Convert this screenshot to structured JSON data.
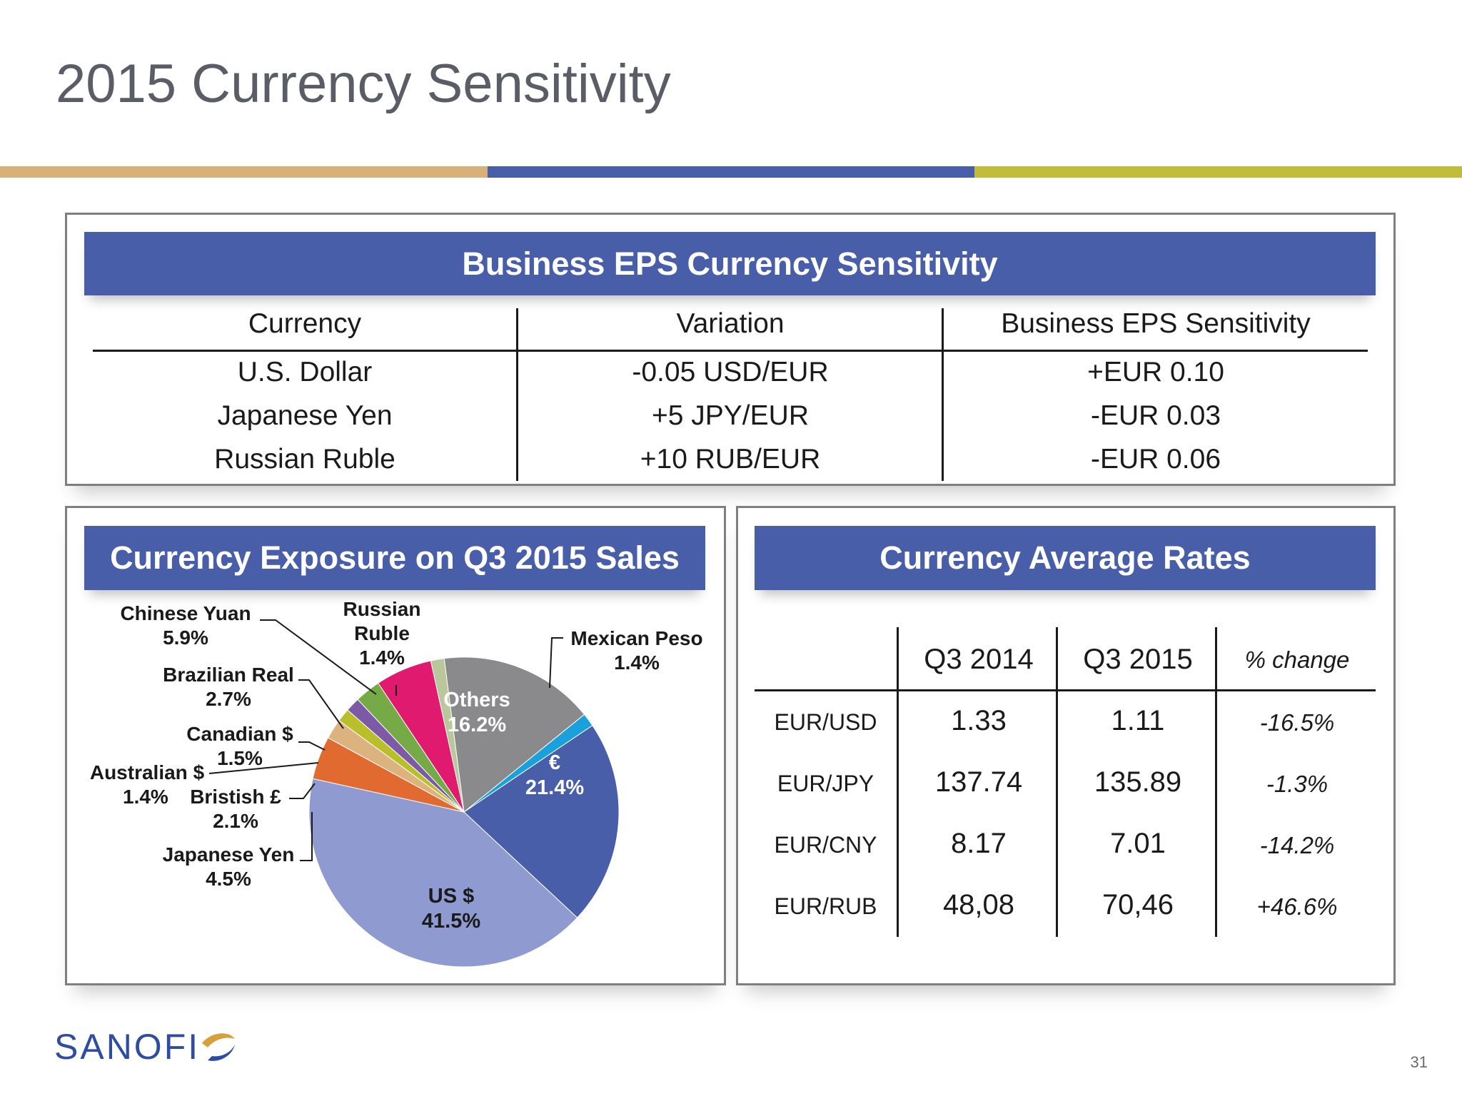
{
  "slide": {
    "title": "2015 Currency Sensitivity",
    "page_number": "31",
    "logo_text": "SANOFI",
    "accent_colors": [
      "#d7b07a",
      "#485ea8",
      "#c0bd3a"
    ]
  },
  "eps": {
    "header": "Business EPS Currency Sensitivity",
    "columns": [
      "Currency",
      "Variation",
      "Business EPS Sensitivity"
    ],
    "rows": [
      [
        "U.S. Dollar",
        "-0.05 USD/EUR",
        "+EUR 0.10"
      ],
      [
        "Japanese Yen",
        "+5 JPY/EUR",
        "-EUR 0.03"
      ],
      [
        "Russian Ruble",
        "+10 RUB/EUR",
        "-EUR 0.06"
      ]
    ]
  },
  "exposure": {
    "header": "Currency Exposure on Q3 2015 Sales"
  },
  "chart_data": {
    "type": "pie",
    "title": "Currency Exposure on Q3 2015 Sales",
    "start_angle_deg": 56,
    "slices": [
      {
        "label": "€",
        "value": 21.4,
        "value_label": "21.4%",
        "color": "#485ea8"
      },
      {
        "label": "US $",
        "value": 41.5,
        "value_label": "41.5%",
        "color": "#8e9ad0"
      },
      {
        "label": "Japanese Yen",
        "value": 4.5,
        "value_label": "4.5%",
        "color": "#e06a30"
      },
      {
        "label": "Bristish £",
        "value": 2.1,
        "value_label": "2.1%",
        "color": "#dcb27e"
      },
      {
        "label": "Australian $",
        "value": 1.4,
        "value_label": "1.4%",
        "color": "#b8bf2b"
      },
      {
        "label": "Canadian $",
        "value": 1.5,
        "value_label": "1.5%",
        "color": "#7c5aa6"
      },
      {
        "label": "Brazilian Real",
        "value": 2.7,
        "value_label": "2.7%",
        "color": "#76aa46"
      },
      {
        "label": "Chinese Yuan",
        "value": 5.9,
        "value_label": "5.9%",
        "color": "#e01a6e"
      },
      {
        "label": "Russian Ruble",
        "value": 1.4,
        "value_label": "1.4%",
        "color": "#b9c79a"
      },
      {
        "label": "Others",
        "value": 16.2,
        "value_label": "16.2%",
        "color": "#8a8a8c"
      },
      {
        "label": "Mexican Peso",
        "value": 1.4,
        "value_label": "1.4%",
        "color": "#1aa1db"
      }
    ]
  },
  "rates": {
    "header": "Currency Average Rates",
    "columns": [
      "Q3 2014",
      "Q3 2015",
      "% change"
    ],
    "rows": [
      {
        "pair": "EUR/USD",
        "q3_2014": "1.33",
        "q3_2015": "1.11",
        "change": "-16.5%"
      },
      {
        "pair": "EUR/JPY",
        "q3_2014": "137.74",
        "q3_2015": "135.89",
        "change": "-1.3%"
      },
      {
        "pair": "EUR/CNY",
        "q3_2014": "8.17",
        "q3_2015": "7.01",
        "change": "-14.2%"
      },
      {
        "pair": "EUR/RUB",
        "q3_2014": "48,08",
        "q3_2015": "70,46",
        "change": "+46.6%"
      }
    ]
  }
}
